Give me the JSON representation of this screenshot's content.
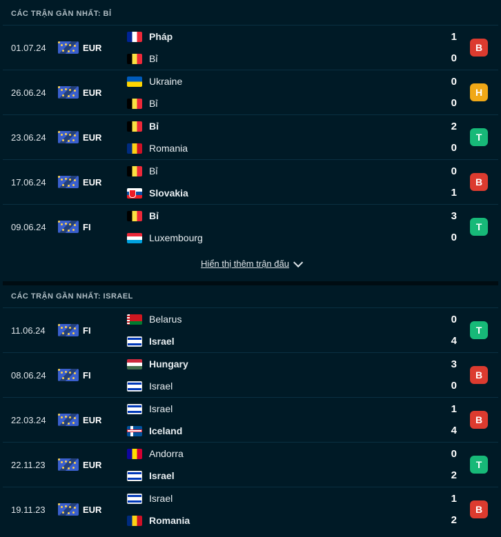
{
  "sections": [
    {
      "title": "CÁC TRẬN GẦN NHẤT: BỈ",
      "matches": [
        {
          "date": "01.07.24",
          "league": "EUR",
          "home": {
            "name": "Pháp",
            "flag": "fra",
            "score": "1",
            "bold": true
          },
          "away": {
            "name": "Bỉ",
            "flag": "bel",
            "score": "0",
            "bold": false
          },
          "result": "B"
        },
        {
          "date": "26.06.24",
          "league": "EUR",
          "home": {
            "name": "Ukraine",
            "flag": "ukr",
            "score": "0",
            "bold": false
          },
          "away": {
            "name": "Bỉ",
            "flag": "bel",
            "score": "0",
            "bold": false
          },
          "result": "H"
        },
        {
          "date": "23.06.24",
          "league": "EUR",
          "home": {
            "name": "Bỉ",
            "flag": "bel",
            "score": "2",
            "bold": true
          },
          "away": {
            "name": "Romania",
            "flag": "rou",
            "score": "0",
            "bold": false
          },
          "result": "T"
        },
        {
          "date": "17.06.24",
          "league": "EUR",
          "home": {
            "name": "Bỉ",
            "flag": "bel",
            "score": "0",
            "bold": false
          },
          "away": {
            "name": "Slovakia",
            "flag": "svk",
            "score": "1",
            "bold": true
          },
          "result": "B"
        },
        {
          "date": "09.06.24",
          "league": "FI",
          "home": {
            "name": "Bỉ",
            "flag": "bel",
            "score": "3",
            "bold": true
          },
          "away": {
            "name": "Luxembourg",
            "flag": "lux",
            "score": "0",
            "bold": false
          },
          "result": "T"
        }
      ],
      "show_more": "Hiển thị thêm trận đấu"
    },
    {
      "title": "CÁC TRẬN GẦN NHẤT: ISRAEL",
      "matches": [
        {
          "date": "11.06.24",
          "league": "FI",
          "home": {
            "name": "Belarus",
            "flag": "blr",
            "score": "0",
            "bold": false
          },
          "away": {
            "name": "Israel",
            "flag": "isr",
            "score": "4",
            "bold": true
          },
          "result": "T"
        },
        {
          "date": "08.06.24",
          "league": "FI",
          "home": {
            "name": "Hungary",
            "flag": "hun",
            "score": "3",
            "bold": true
          },
          "away": {
            "name": "Israel",
            "flag": "isr",
            "score": "0",
            "bold": false
          },
          "result": "B"
        },
        {
          "date": "22.03.24",
          "league": "EUR",
          "home": {
            "name": "Israel",
            "flag": "isr",
            "score": "1",
            "bold": false
          },
          "away": {
            "name": "Iceland",
            "flag": "isl",
            "score": "4",
            "bold": true
          },
          "result": "B"
        },
        {
          "date": "22.11.23",
          "league": "EUR",
          "home": {
            "name": "Andorra",
            "flag": "and",
            "score": "0",
            "bold": false
          },
          "away": {
            "name": "Israel",
            "flag": "isr",
            "score": "2",
            "bold": true
          },
          "result": "T"
        },
        {
          "date": "19.11.23",
          "league": "EUR",
          "home": {
            "name": "Israel",
            "flag": "isr",
            "score": "1",
            "bold": false
          },
          "away": {
            "name": "Romania",
            "flag": "rou",
            "score": "2",
            "bold": true
          },
          "result": "B"
        }
      ]
    }
  ]
}
